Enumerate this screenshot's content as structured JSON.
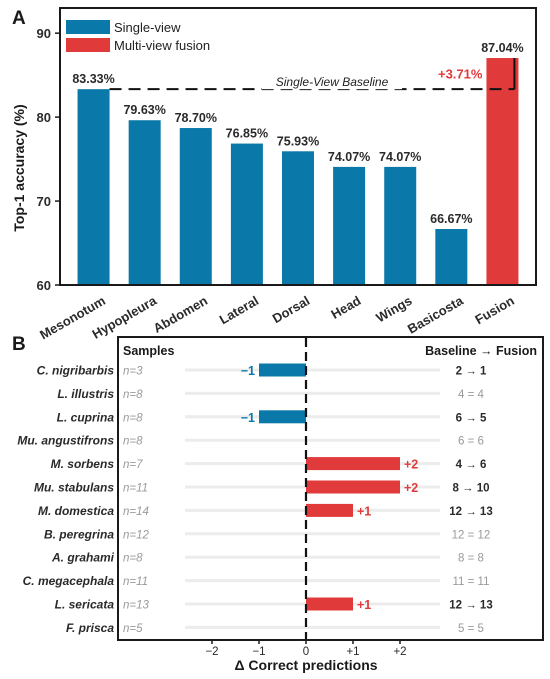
{
  "colors": {
    "single_view": "#0a78a8",
    "multi_view": "#e03a3a",
    "axis": "#1a1a1a",
    "text": "#2a2a2a",
    "muted": "#9a9a9a",
    "row_line": "#ececec"
  },
  "panel_a": {
    "panel_label": "A",
    "legend": [
      "Single-view",
      "Multi-view fusion"
    ],
    "baseline_label": "Single-View Baseline",
    "gain_label": "+3.71%"
  },
  "panel_b": {
    "panel_label": "B",
    "samples_header": "Samples",
    "baseline_header": "Baseline → Fusion"
  },
  "chart_data": [
    {
      "type": "bar",
      "title": "",
      "xlabel": "",
      "ylabel": "Top-1 accuracy (%)",
      "ylim": [
        60,
        93
      ],
      "yticks": [
        60,
        70,
        80,
        90
      ],
      "grid": false,
      "legend_position": "top-left",
      "categories": [
        "Mesonotum",
        "Hypopleura",
        "Abdomen",
        "Lateral",
        "Dorsal",
        "Head",
        "Wings",
        "Basicosta",
        "Fusion"
      ],
      "values": [
        83.33,
        79.63,
        78.7,
        76.85,
        75.93,
        74.07,
        74.07,
        66.67,
        87.04
      ],
      "value_labels": [
        "83.33%",
        "79.63%",
        "78.70%",
        "76.85%",
        "75.93%",
        "74.07%",
        "74.07%",
        "66.67%",
        "87.04%"
      ],
      "groups": [
        "single",
        "single",
        "single",
        "single",
        "single",
        "single",
        "single",
        "single",
        "fusion"
      ],
      "series": [
        {
          "name": "Single-view",
          "categories": [
            "Mesonotum",
            "Hypopleura",
            "Abdomen",
            "Lateral",
            "Dorsal",
            "Head",
            "Wings",
            "Basicosta"
          ]
        },
        {
          "name": "Multi-view fusion",
          "categories": [
            "Fusion"
          ]
        }
      ],
      "baseline": 83.33,
      "annotation": "+3.71%"
    },
    {
      "type": "bar",
      "orientation": "horizontal",
      "title": "",
      "xlabel": "Δ Correct predictions",
      "ylabel": "",
      "xlim": [
        -3,
        3
      ],
      "xticks": [
        -2,
        -1,
        0,
        1,
        2
      ],
      "xtick_labels": [
        "−2",
        "−1",
        "0",
        "+1",
        "+2"
      ],
      "grid": false,
      "rows": [
        {
          "species": "C. nigribarbis",
          "n": "n=3",
          "delta": -1,
          "delta_label": "−1",
          "change": "2 → 1"
        },
        {
          "species": "L. illustris",
          "n": "n=8",
          "delta": 0,
          "delta_label": "",
          "change": "4 = 4"
        },
        {
          "species": "L. cuprina",
          "n": "n=8",
          "delta": -1,
          "delta_label": "−1",
          "change": "6 → 5"
        },
        {
          "species": "Mu. angustifrons",
          "n": "n=8",
          "delta": 0,
          "delta_label": "",
          "change": "6 = 6"
        },
        {
          "species": "M. sorbens",
          "n": "n=7",
          "delta": 2,
          "delta_label": "+2",
          "change": "4 → 6"
        },
        {
          "species": "Mu. stabulans",
          "n": "n=11",
          "delta": 2,
          "delta_label": "+2",
          "change": "8 → 10"
        },
        {
          "species": "M. domestica",
          "n": "n=14",
          "delta": 1,
          "delta_label": "+1",
          "change": "12 → 13"
        },
        {
          "species": "B. peregrina",
          "n": "n=12",
          "delta": 0,
          "delta_label": "",
          "change": "12 = 12"
        },
        {
          "species": "A. grahami",
          "n": "n=8",
          "delta": 0,
          "delta_label": "",
          "change": "8 = 8"
        },
        {
          "species": "C. megacephala",
          "n": "n=11",
          "delta": 0,
          "delta_label": "",
          "change": "11 = 11"
        },
        {
          "species": "L. sericata",
          "n": "n=13",
          "delta": 1,
          "delta_label": "+1",
          "change": "12 → 13"
        },
        {
          "species": "F. prisca",
          "n": "n=5",
          "delta": 0,
          "delta_label": "",
          "change": "5 = 5"
        }
      ]
    }
  ]
}
